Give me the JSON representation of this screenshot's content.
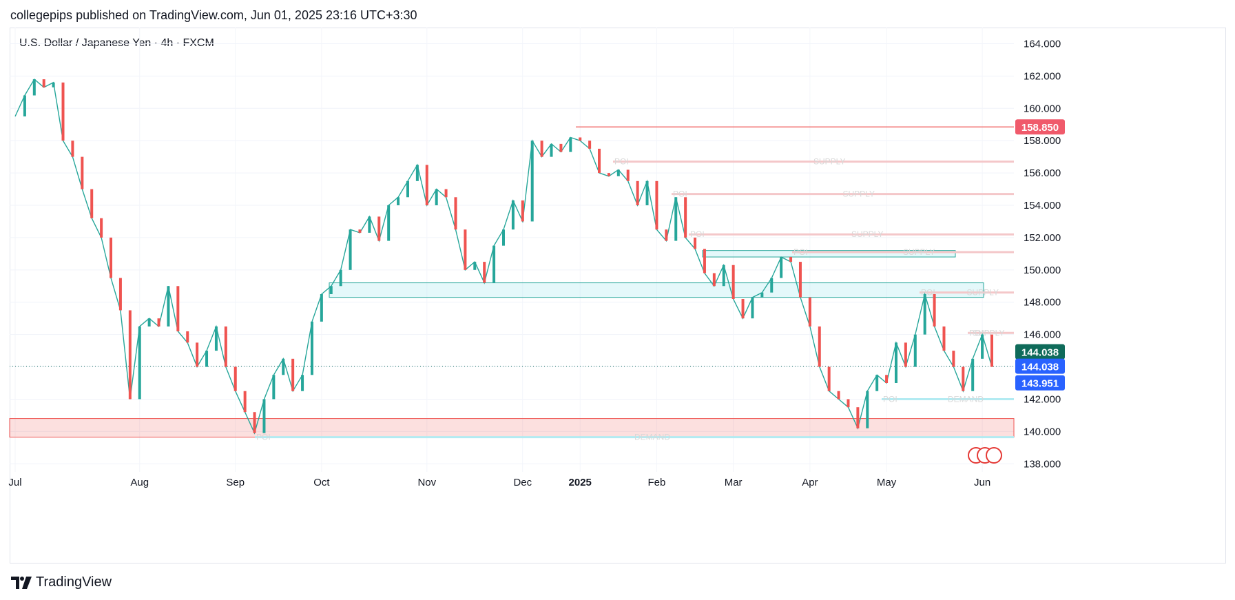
{
  "header": {
    "publish_line": "collegepips published on TradingView.com, Jun 01, 2025 23:16 UTC+3:30"
  },
  "symbol": {
    "title": "U.S. Dollar / Japanese Yen · 4h · FXCM"
  },
  "footer": {
    "brand": "TradingView",
    "logo_icon": "tradingview-logo-icon"
  },
  "colors": {
    "up": "#26a69a",
    "down": "#ef5350",
    "supply": "#f4c7c9",
    "demand": "#b2ebf2",
    "price_label": "#0f6b5a",
    "bid_label": "#2962ff",
    "high_label": "#f05a6b"
  },
  "chart_data": {
    "type": "candlestick",
    "ylim": [
      137.5,
      165.0
    ],
    "y_ticks": [
      "164.000",
      "162.000",
      "160.000",
      "158.000",
      "156.000",
      "154.000",
      "152.000",
      "150.000",
      "148.000",
      "146.000",
      "144.000",
      "142.000",
      "140.000",
      "138.000"
    ],
    "x_ticks": [
      "Jul",
      "Aug",
      "Sep",
      "Oct",
      "Nov",
      "Dec",
      "2025",
      "Feb",
      "Mar",
      "Apr",
      "May",
      "Jun"
    ],
    "series": [
      {
        "values": [
          [
            "Jul",
            159.5
          ],
          [
            "",
            160.8
          ],
          [
            "",
            161.8
          ],
          [
            "",
            161.3
          ],
          [
            "",
            161.6
          ],
          [
            "",
            158.0
          ],
          [
            "",
            157.0
          ],
          [
            "",
            155.0
          ],
          [
            "",
            153.2
          ],
          [
            "",
            152.0
          ],
          [
            "",
            149.5
          ],
          [
            "",
            147.5
          ],
          [
            "",
            142.0
          ],
          [
            "Aug",
            146.5
          ],
          [
            "",
            147.0
          ],
          [
            "",
            146.5
          ],
          [
            "",
            149.0
          ],
          [
            "",
            146.2
          ],
          [
            "",
            145.5
          ],
          [
            "",
            144.0
          ],
          [
            "",
            145.0
          ],
          [
            "",
            146.5
          ],
          [
            "",
            144.0
          ],
          [
            "Sep",
            142.5
          ],
          [
            "",
            141.2
          ],
          [
            "",
            139.9
          ],
          [
            "",
            142.0
          ],
          [
            "",
            143.5
          ],
          [
            "",
            144.5
          ],
          [
            "",
            142.5
          ],
          [
            "",
            143.5
          ],
          [
            "",
            146.8
          ],
          [
            "Oct",
            148.5
          ],
          [
            "",
            149.0
          ],
          [
            "",
            150.0
          ],
          [
            "",
            152.5
          ],
          [
            "",
            152.3
          ],
          [
            "",
            153.3
          ],
          [
            "",
            151.8
          ],
          [
            "",
            154.0
          ],
          [
            "",
            154.5
          ],
          [
            "",
            155.5
          ],
          [
            "",
            156.5
          ],
          [
            "Nov",
            154.0
          ],
          [
            "",
            155.0
          ],
          [
            "",
            154.5
          ],
          [
            "",
            152.5
          ],
          [
            "",
            150.0
          ],
          [
            "",
            150.5
          ],
          [
            "",
            149.2
          ],
          [
            "",
            151.5
          ],
          [
            "",
            152.5
          ],
          [
            "",
            154.3
          ],
          [
            "Dec",
            153.0
          ],
          [
            "",
            158.0
          ],
          [
            "",
            157.0
          ],
          [
            "",
            157.8
          ],
          [
            "",
            157.3
          ],
          [
            "",
            158.2
          ],
          [
            "2025",
            158.0
          ],
          [
            "",
            157.5
          ],
          [
            "",
            156.0
          ],
          [
            "",
            155.8
          ],
          [
            "",
            156.2
          ],
          [
            "",
            155.5
          ],
          [
            "",
            154.0
          ],
          [
            "",
            155.5
          ],
          [
            "Feb",
            152.5
          ],
          [
            "",
            151.8
          ],
          [
            "",
            154.5
          ],
          [
            "",
            152.0
          ],
          [
            "",
            151.3
          ],
          [
            "",
            149.8
          ],
          [
            "",
            149.0
          ],
          [
            "",
            150.3
          ],
          [
            "Mar",
            148.2
          ],
          [
            "",
            147.0
          ],
          [
            "",
            148.3
          ],
          [
            "",
            148.6
          ],
          [
            "",
            149.5
          ],
          [
            "",
            150.8
          ],
          [
            "",
            150.5
          ],
          [
            "",
            148.3
          ],
          [
            "Apr",
            146.5
          ],
          [
            "",
            144.0
          ],
          [
            "",
            142.5
          ],
          [
            "",
            142.0
          ],
          [
            "",
            141.5
          ],
          [
            "",
            140.2
          ],
          [
            "",
            142.5
          ],
          [
            "",
            143.5
          ],
          [
            "May",
            143.0
          ],
          [
            "",
            145.5
          ],
          [
            "",
            144.0
          ],
          [
            "",
            146.0
          ],
          [
            "",
            148.5
          ],
          [
            "",
            146.5
          ],
          [
            "",
            145.0
          ],
          [
            "",
            144.0
          ],
          [
            "",
            142.5
          ],
          [
            "",
            144.5
          ],
          [
            "Jun",
            146.0
          ],
          [
            "",
            144.0
          ]
        ]
      }
    ],
    "zones": [
      {
        "kind": "supply",
        "label_left": "POI",
        "label_right": "SUPPLY",
        "y": 156.7
      },
      {
        "kind": "supply",
        "label_left": "POI",
        "label_right": "SUPPLY",
        "y": 154.7
      },
      {
        "kind": "supply",
        "label_left": "POI",
        "label_right": "SUPPLY",
        "y": 152.2
      },
      {
        "kind": "supply",
        "label_left": "POI",
        "label_right": "SUPPLY",
        "y": 151.1
      },
      {
        "kind": "supply",
        "label_left": "POI",
        "label_right": "SUPPLY",
        "y": 148.6
      },
      {
        "kind": "supply",
        "label_left": "POI",
        "label_right": "SUPPLY",
        "y": 146.1
      },
      {
        "kind": "demand",
        "label_left": "POI",
        "label_right": "DEMAND",
        "y": 142.0
      },
      {
        "kind": "demand",
        "label_left": "POI",
        "label_right": "DEMAND",
        "y": 139.65
      }
    ],
    "boxes": [
      {
        "kind": "demand-box",
        "y_top": 140.8,
        "y_bottom": 139.65
      },
      {
        "kind": "teal-box",
        "y_top": 151.2,
        "y_bottom": 150.8
      },
      {
        "kind": "teal-box",
        "y_top": 149.2,
        "y_bottom": 148.3
      }
    ],
    "high_line": 158.85,
    "price_labels": [
      {
        "text": "158.850",
        "value": 158.85,
        "role": "high"
      },
      {
        "text": "144.038",
        "value": 144.038,
        "role": "last"
      },
      {
        "text": "144.038",
        "value": 144.038,
        "role": "bid"
      },
      {
        "text": "143.951",
        "value": 143.951,
        "role": "ask"
      }
    ],
    "last_price": 144.038,
    "grid": true
  }
}
